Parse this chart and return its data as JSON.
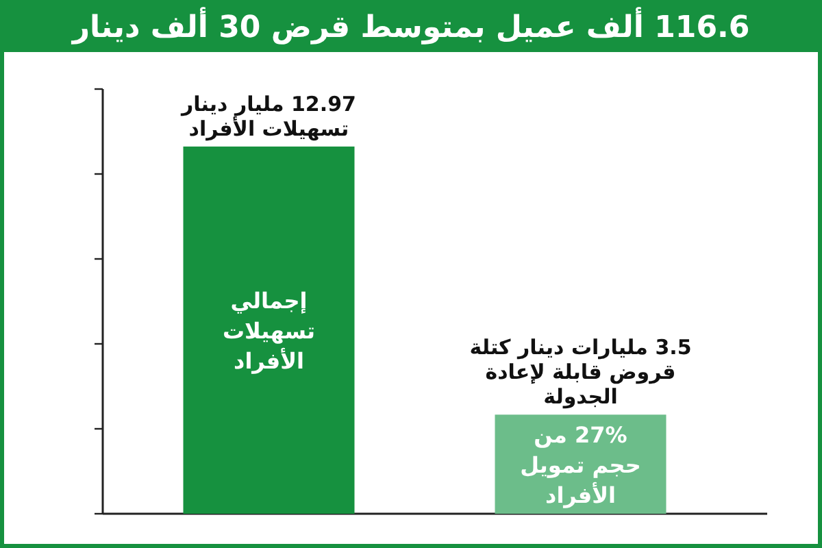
{
  "chart_data": {
    "type": "bar",
    "title": "116.6 ألف عميل بمتوسط قرض 30 ألف دينار",
    "categories": [
      null,
      null
    ],
    "values": [
      12.97,
      3.5
    ],
    "colors": [
      "#16913f",
      "#6cbd8a"
    ],
    "value_labels": [
      "12.97 مليار دينار تسهيلات الأفراد",
      "3.5 مليارات دينار كتلة قروض قابلة لإعادة الجدولة"
    ],
    "annotations": [
      "إجمالي تسهيلات الأفراد",
      "27% من حجم تمويل الأفراد"
    ],
    "ylim": [
      0,
      15
    ],
    "yticks": [
      {
        "value": 0,
        "label": null
      },
      {
        "value": 3,
        "label": null
      },
      {
        "value": 6,
        "label": null
      },
      {
        "value": 9,
        "label": null
      },
      {
        "value": 12,
        "label": null
      },
      {
        "value": 15,
        "label": null
      }
    ]
  }
}
